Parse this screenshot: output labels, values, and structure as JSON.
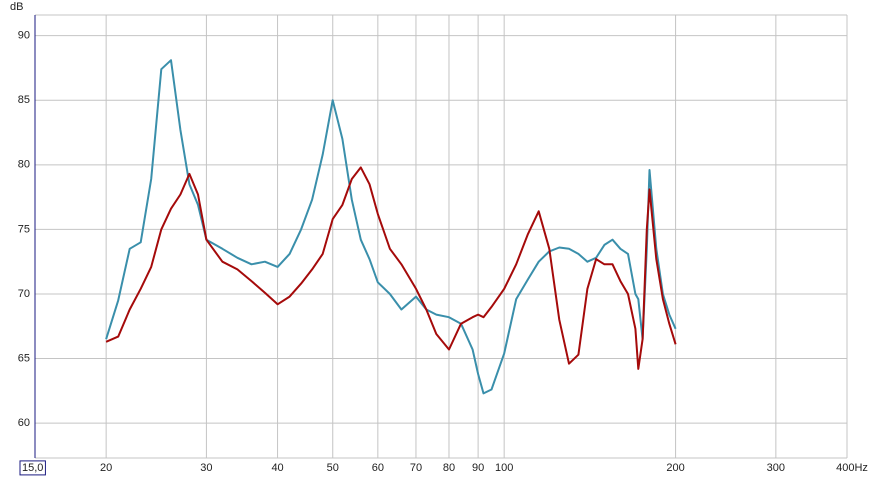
{
  "chart_data": {
    "type": "line",
    "y_label": "dB",
    "log_x": true,
    "grid": true,
    "xlim": [
      15,
      400
    ],
    "ylim": [
      57.3,
      91.6
    ],
    "xticks": [
      {
        "value": 15,
        "label": "15,0"
      },
      20,
      30,
      40,
      50,
      60,
      70,
      80,
      90,
      100,
      200,
      300,
      {
        "value": 400,
        "label": "400Hz"
      }
    ],
    "yticks": [
      60,
      65,
      70,
      75,
      80,
      85,
      90
    ],
    "x": [
      20,
      21,
      22,
      23,
      24,
      25,
      26,
      27,
      28,
      29,
      30,
      32,
      34,
      36,
      38,
      40,
      42,
      44,
      46,
      48,
      50,
      52,
      54,
      56,
      58,
      60,
      63,
      66,
      70,
      73,
      76,
      80,
      84,
      88,
      90,
      92,
      95,
      100,
      105,
      110,
      115,
      120,
      125,
      130,
      135,
      140,
      145,
      150,
      155,
      160,
      165,
      170,
      172,
      175,
      178,
      180,
      185,
      190,
      195,
      200
    ],
    "series": [
      {
        "name": "teal",
        "color": "#3a8fab",
        "values": [
          66.5,
          69.5,
          73.5,
          74.0,
          78.9,
          87.4,
          88.1,
          82.7,
          78.5,
          76.9,
          74.2,
          73.5,
          72.8,
          72.3,
          72.5,
          72.1,
          73.1,
          75.0,
          77.3,
          80.8,
          85.0,
          82.0,
          77.3,
          74.2,
          72.7,
          70.9,
          70.0,
          68.8,
          69.8,
          68.8,
          68.4,
          68.2,
          67.7,
          65.7,
          63.8,
          62.3,
          62.6,
          65.4,
          69.6,
          71.1,
          72.5,
          73.3,
          73.6,
          73.5,
          73.1,
          72.5,
          72.8,
          73.8,
          74.2,
          73.5,
          73.1,
          70.0,
          69.6,
          66.5,
          73.5,
          79.6,
          73.5,
          70.0,
          68.4,
          67.3
        ]
      },
      {
        "name": "red",
        "color": "#a50a0a",
        "values": [
          66.3,
          66.7,
          68.8,
          70.4,
          72.1,
          75.0,
          76.6,
          77.7,
          79.3,
          77.7,
          74.2,
          72.5,
          71.9,
          71.0,
          70.1,
          69.2,
          69.8,
          70.8,
          71.9,
          73.1,
          75.8,
          76.9,
          78.9,
          79.8,
          78.5,
          76.2,
          73.5,
          72.3,
          70.4,
          68.8,
          66.9,
          65.7,
          67.7,
          68.2,
          68.4,
          68.2,
          69.0,
          70.4,
          72.3,
          74.6,
          76.4,
          73.5,
          68.0,
          64.6,
          65.3,
          70.4,
          72.7,
          72.3,
          72.3,
          71.0,
          70.0,
          67.3,
          64.2,
          66.5,
          75.0,
          78.1,
          72.7,
          69.6,
          67.7,
          66.1
        ]
      }
    ]
  }
}
